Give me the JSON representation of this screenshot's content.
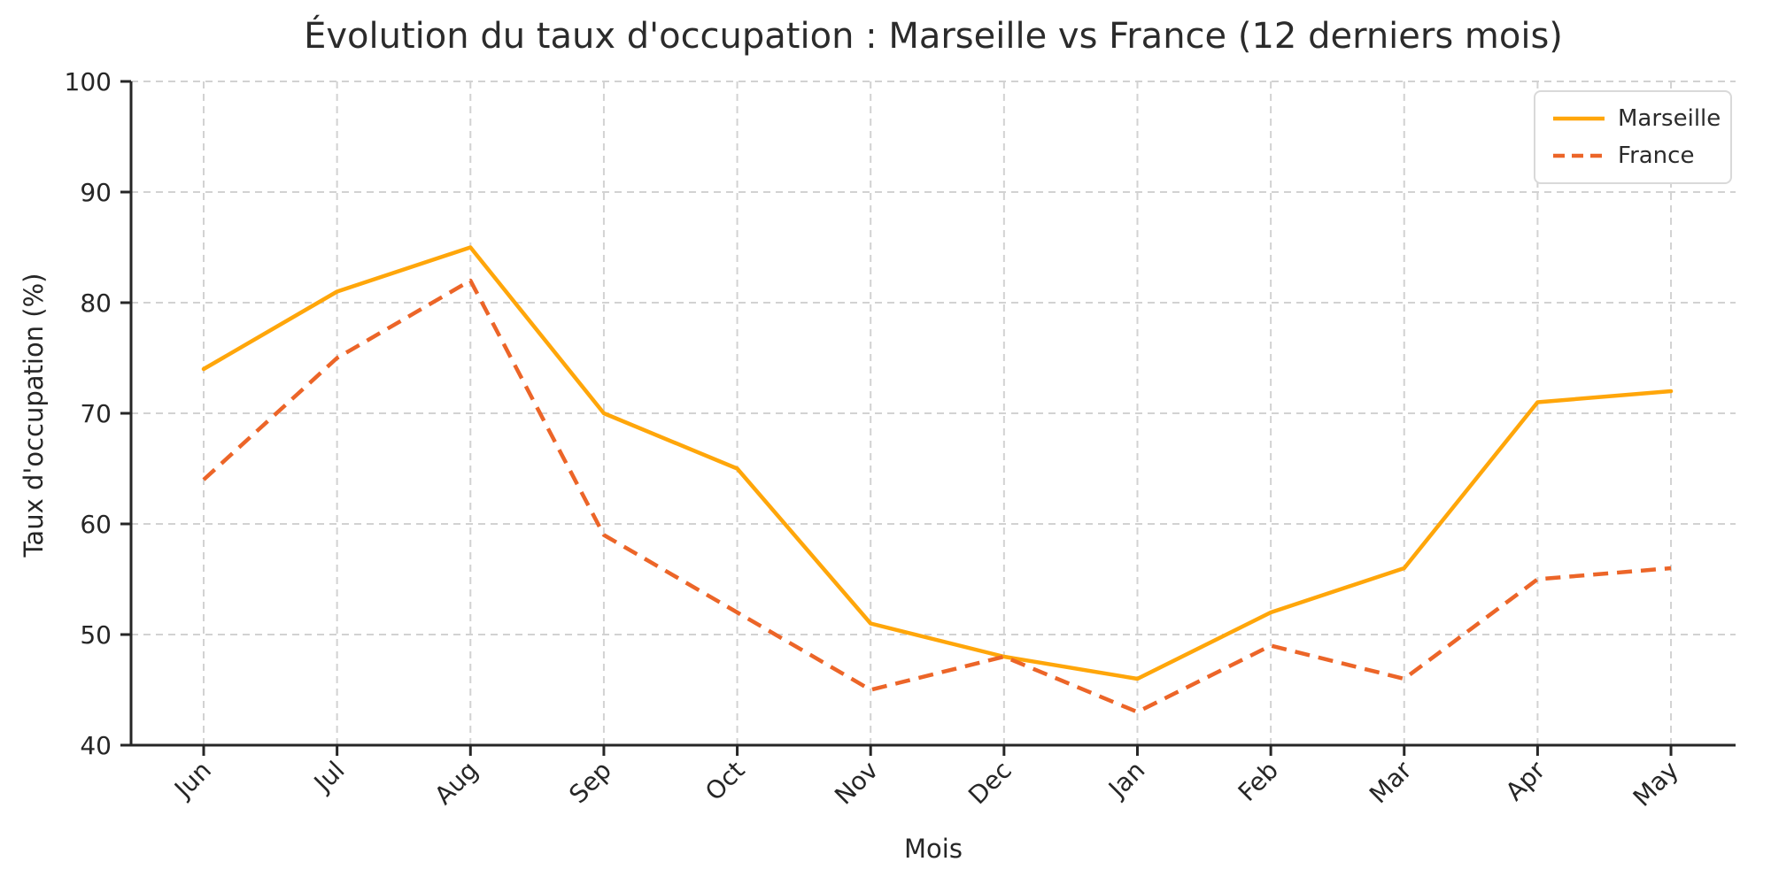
{
  "chart_data": {
    "type": "line",
    "title": "Évolution du taux d'occupation : Marseille vs France (12 derniers mois)",
    "xlabel": "Mois",
    "ylabel": "Taux d'occupation (%)",
    "categories": [
      "Jun",
      "Jul",
      "Aug",
      "Sep",
      "Oct",
      "Nov",
      "Dec",
      "Jan",
      "Feb",
      "Mar",
      "Apr",
      "May"
    ],
    "series": [
      {
        "name": "Marseille",
        "style": "solid",
        "color": "#FFA60A",
        "values": [
          74,
          81,
          85,
          70,
          65,
          51,
          48,
          46,
          52,
          56,
          71,
          72
        ]
      },
      {
        "name": "France",
        "style": "dashed",
        "color": "#EC6528",
        "values": [
          64,
          75,
          82,
          59,
          52,
          45,
          48,
          43,
          49,
          46,
          55,
          56
        ]
      }
    ],
    "ylim": [
      40,
      100
    ],
    "yticks": [
      40,
      50,
      60,
      70,
      80,
      90,
      100
    ],
    "grid": true,
    "grid_style": "dashed",
    "legend_position": "upper right",
    "colors": {
      "grid": "#d2d2d2",
      "axis": "#262626",
      "text": "#262626",
      "legend_border": "#d9d9d9",
      "background": "#ffffff"
    }
  }
}
